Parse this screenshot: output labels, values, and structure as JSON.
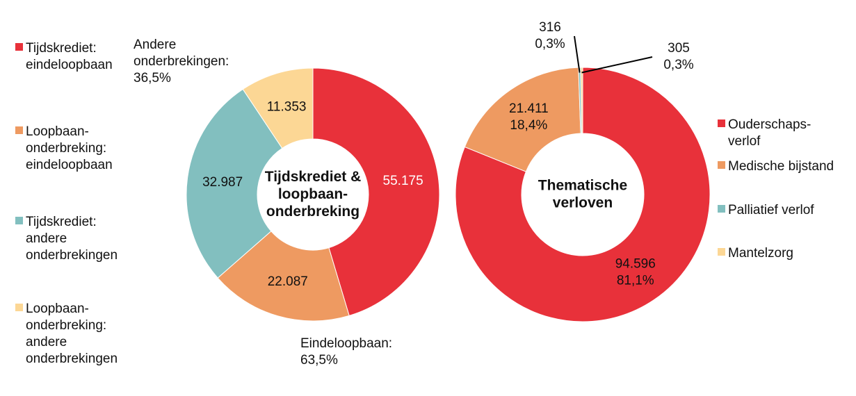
{
  "chart_data": [
    {
      "type": "donut",
      "title": "Tijdskrediet &\nloopbaan-\nonderbreking",
      "categories": [
        "Tijdskrediet:\neindeloopbaan",
        "Loopbaan-\nonderbreking:\neindeloopbaan",
        "Tijdskrediet:\nandere\nonderbrekingen",
        "Loopbaan-\nonderbreking:\nandere\nonderbrekingen"
      ],
      "values": [
        55175,
        22087,
        32987,
        11353
      ],
      "value_labels": [
        "55.175",
        "22.087",
        "32.987",
        "11.353"
      ],
      "colors": [
        "#e8313a",
        "#ee9a61",
        "#82bfbf",
        "#fcd795"
      ],
      "legend": "left",
      "annotations": [
        "Andere\nonderbrekingen:\n36,5%",
        "Eindeloopbaan:\n63,5%"
      ]
    },
    {
      "type": "donut",
      "title": "Thematische\nverloven",
      "categories": [
        "Ouderschaps-\nverlof",
        "Medische bijstand",
        "Palliatief verlof",
        "Mantelzorg"
      ],
      "values": [
        94596,
        21411,
        316,
        305
      ],
      "value_labels": [
        "94.596",
        "21.411",
        "316",
        "305"
      ],
      "percents": [
        81.1,
        18.4,
        0.3,
        0.3
      ],
      "percent_labels": [
        "81,1%",
        "18,4%",
        "0,3%",
        "0,3%"
      ],
      "colors": [
        "#e8313a",
        "#ee9a61",
        "#82bfbf",
        "#fcd795"
      ],
      "legend": "right"
    }
  ]
}
